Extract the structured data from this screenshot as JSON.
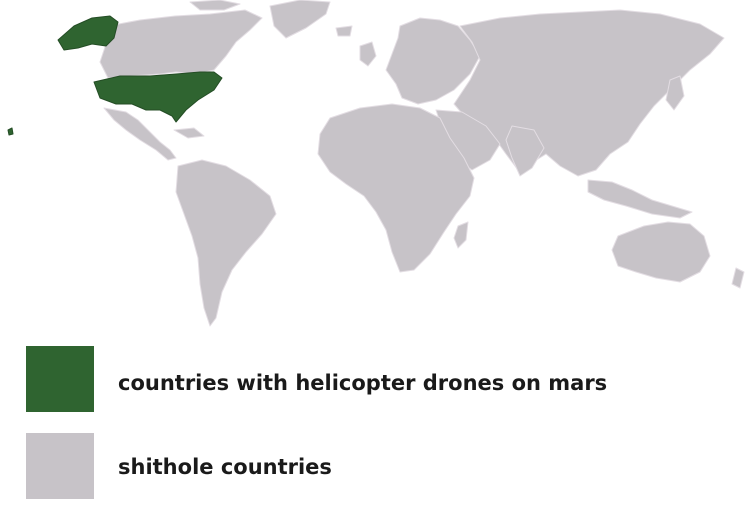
{
  "colors": {
    "highlight": "#2f6430",
    "other": "#c7c3c8",
    "border": "#e3dde3",
    "background": "#ffffff"
  },
  "legend": {
    "items": [
      {
        "label": "countries with helicopter drones on mars",
        "color_key": "highlight"
      },
      {
        "label": "shithole countries",
        "color_key": "other"
      }
    ]
  }
}
